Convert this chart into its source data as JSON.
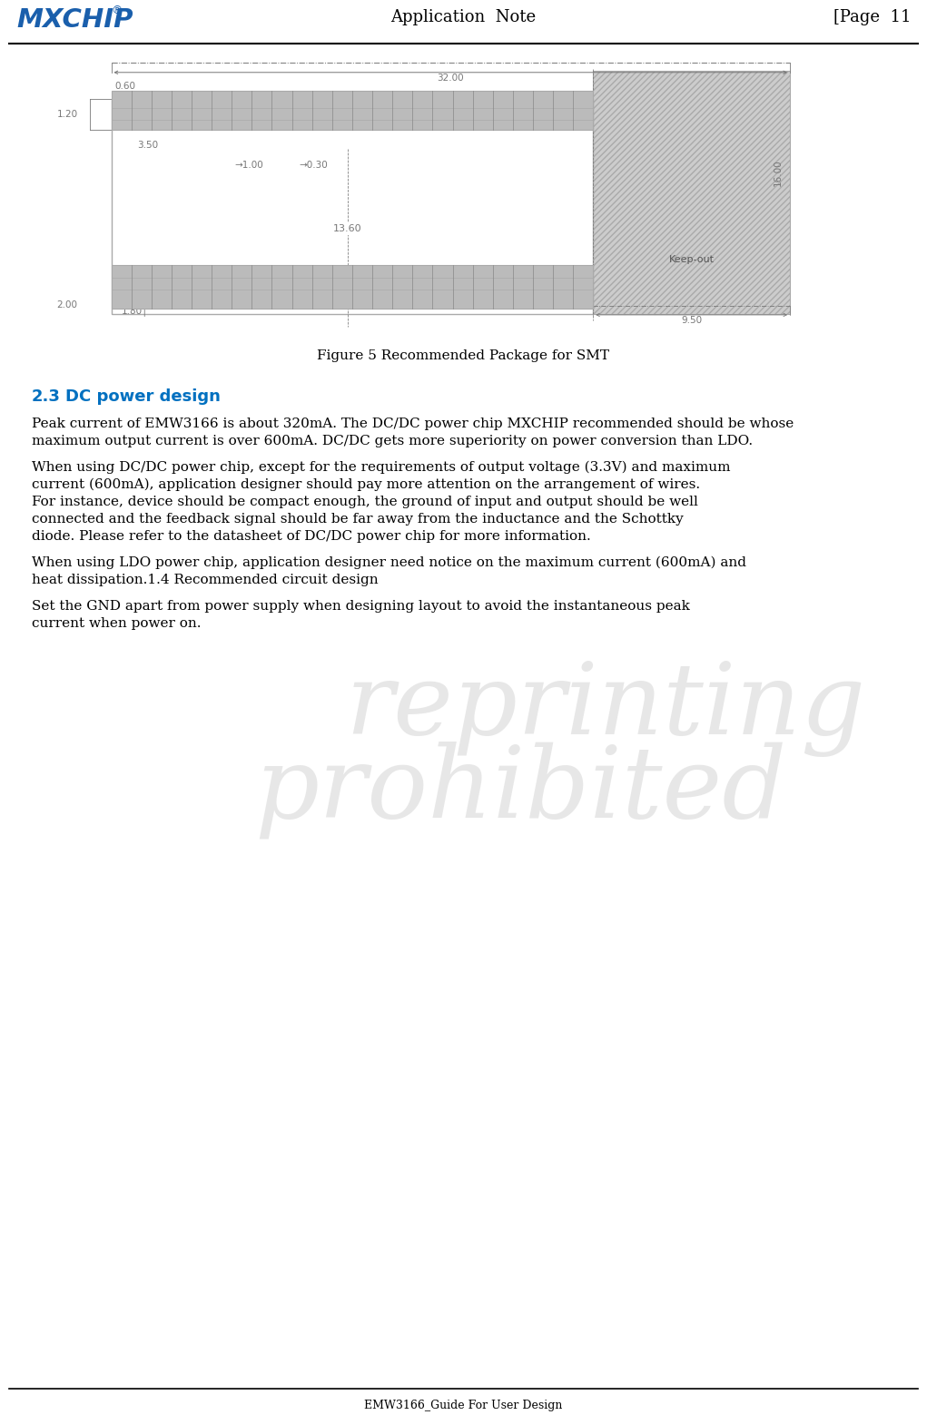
{
  "page_title": "Application  Note",
  "page_num": "[Page  11",
  "logo_text": "MXCHIP",
  "logo_reg": "®",
  "footer_text": "EMW3166_Guide For User Design",
  "figure_caption": "Figure 5 Recommended Package for SMT",
  "section_num": "2.3",
  "section_heading": "DC power design",
  "body_text_1": "Peak current of EMW3166 is about 320mA. The DC/DC power chip MXCHIP recommended should be whose maximum output current is over 600mA. DC/DC gets more superiority on power conversion than LDO.",
  "body_text_2": "When using DC/DC power chip, except for the requirements of output voltage (3.3V) and maximum current (600mA), application designer should pay more attention on the arrangement of wires. For instance, device should be compact enough, the ground of input and output should be well connected and the feedback signal should be far away from the inductance and the Schottky diode. Please refer to the datasheet of DC/DC power chip for more information.",
  "body_text_3a": " When using LDO power chip, application designer need notice on the maximum current (600mA) and heat dissipation.1.4   Recommended circuit design",
  "body_text_4": "Set the GND apart from power supply when designing layout to avoid the instantaneous peak current when power on.",
  "watermark_line1": "reprinting",
  "watermark_line2": "prohibited",
  "bg_color": "#ffffff",
  "text_color": "#000000",
  "logo_color": "#1a5fac",
  "section_color": "#0070c0",
  "dim_color": "#777777",
  "pad_color": "#bbbbbb",
  "hatch_color": "#cccccc",
  "line_color": "#aaaaaa",
  "header_line_color": "#000000",
  "dim_fs": 7.5,
  "body_fs": 11.0,
  "caption_fs": 11.0
}
